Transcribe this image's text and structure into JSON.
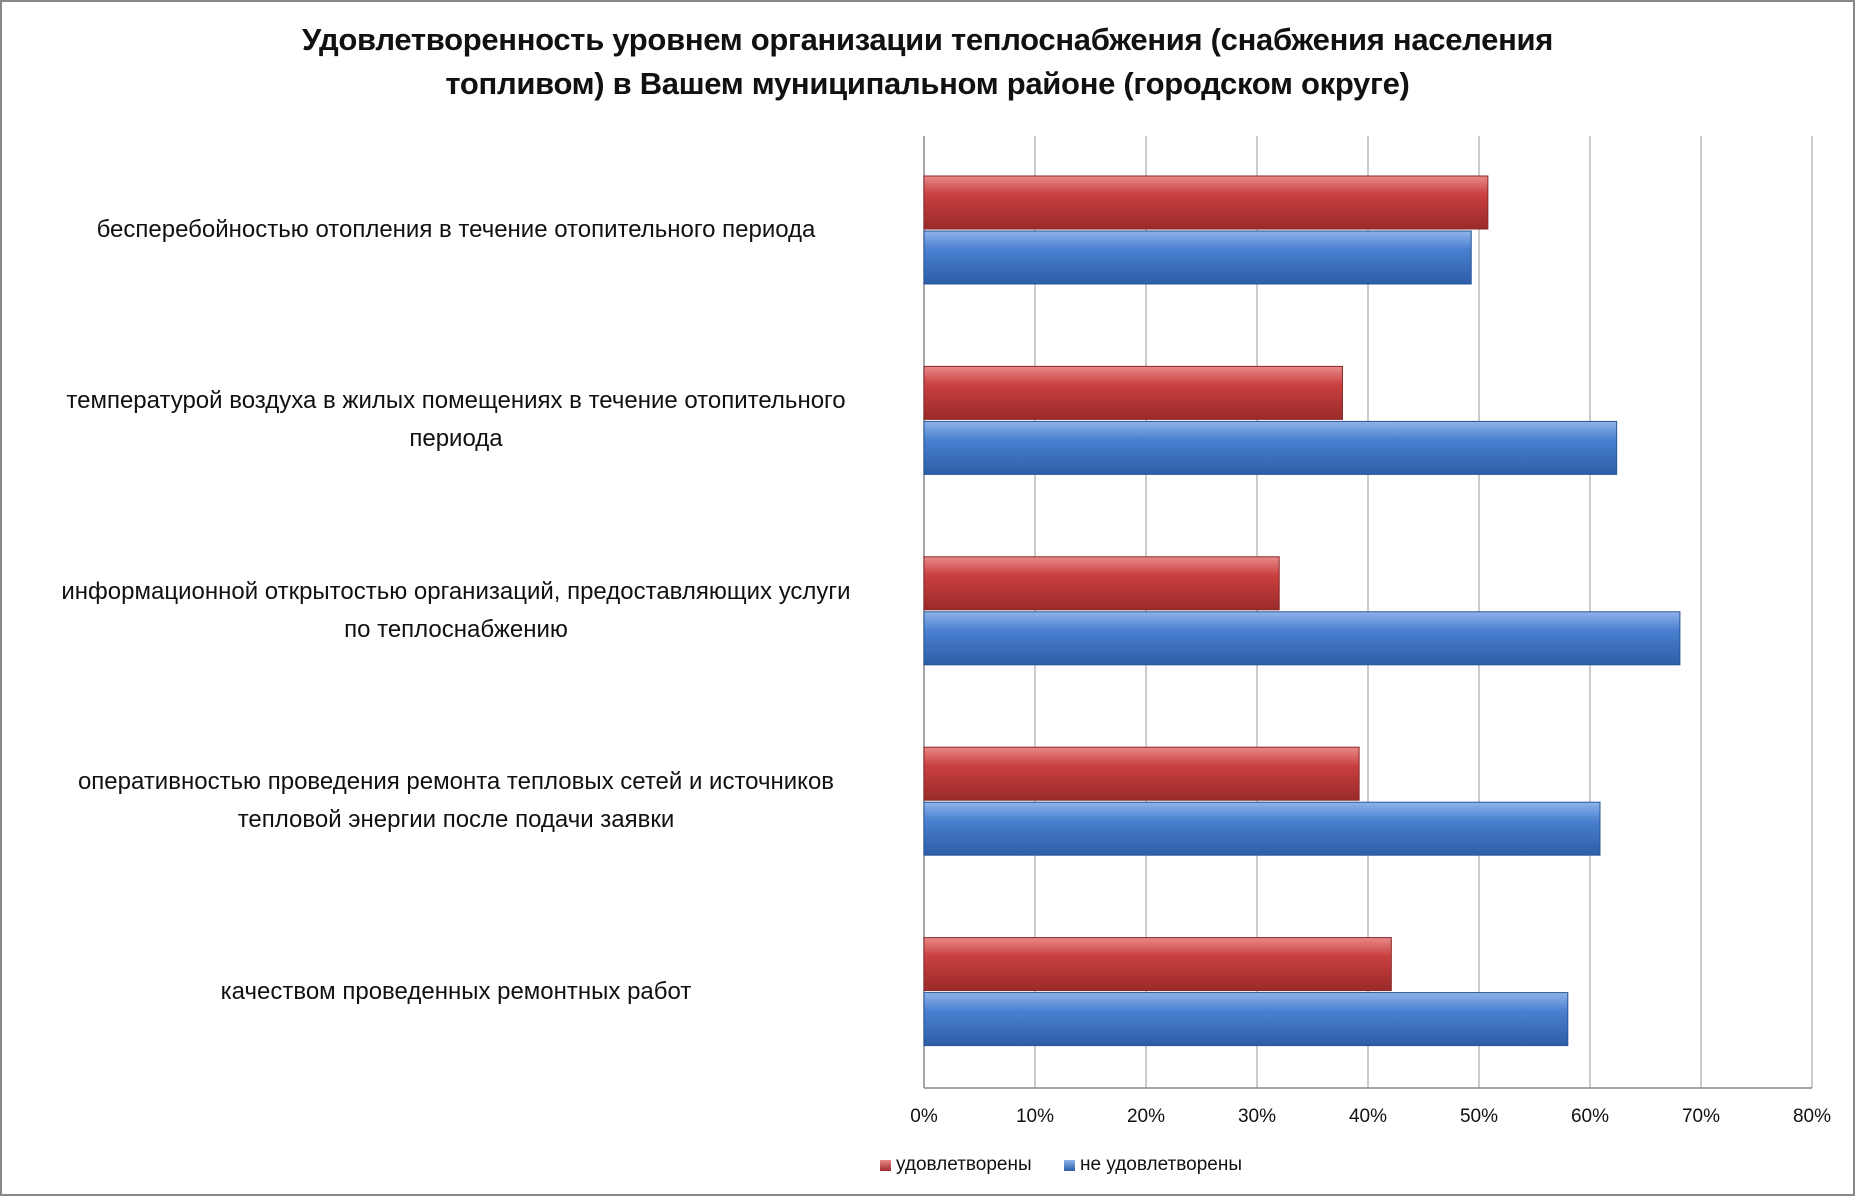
{
  "chart_data": {
    "type": "bar",
    "orientation": "horizontal",
    "title": [
      "Удовлетворенность уровнем организации теплоснабжения (снабжения населения",
      "топливом) в Вашем муниципальном районе (городском округе)"
    ],
    "categories": [
      [
        "бесперебойностью  отопления в течение отопительного периода"
      ],
      [
        "температурой  воздуха в жилых помещениях в течение отопительного",
        "периода"
      ],
      [
        "информационной открытостью организаций, предоставляющих услуги",
        "по теплоснабжению"
      ],
      [
        "оперативностью проведения ремонта тепловых сетей и источников",
        "тепловой энергии после подачи заявки"
      ],
      [
        "качеством  проведенных  ремонтных  работ"
      ]
    ],
    "series": [
      {
        "name": "удовлетворены",
        "color": "#c0393b",
        "values": [
          50.8,
          37.7,
          32.0,
          39.2,
          42.1
        ]
      },
      {
        "name": "не удовлетворены",
        "color": "#3f78c9",
        "values": [
          49.3,
          62.4,
          68.1,
          60.9,
          58.0
        ]
      }
    ],
    "xlim": [
      0,
      80
    ],
    "xticks": [
      "0%",
      "10%",
      "20%",
      "30%",
      "40%",
      "50%",
      "60%",
      "70%",
      "80%"
    ],
    "grid": true,
    "legend": "bottom"
  }
}
